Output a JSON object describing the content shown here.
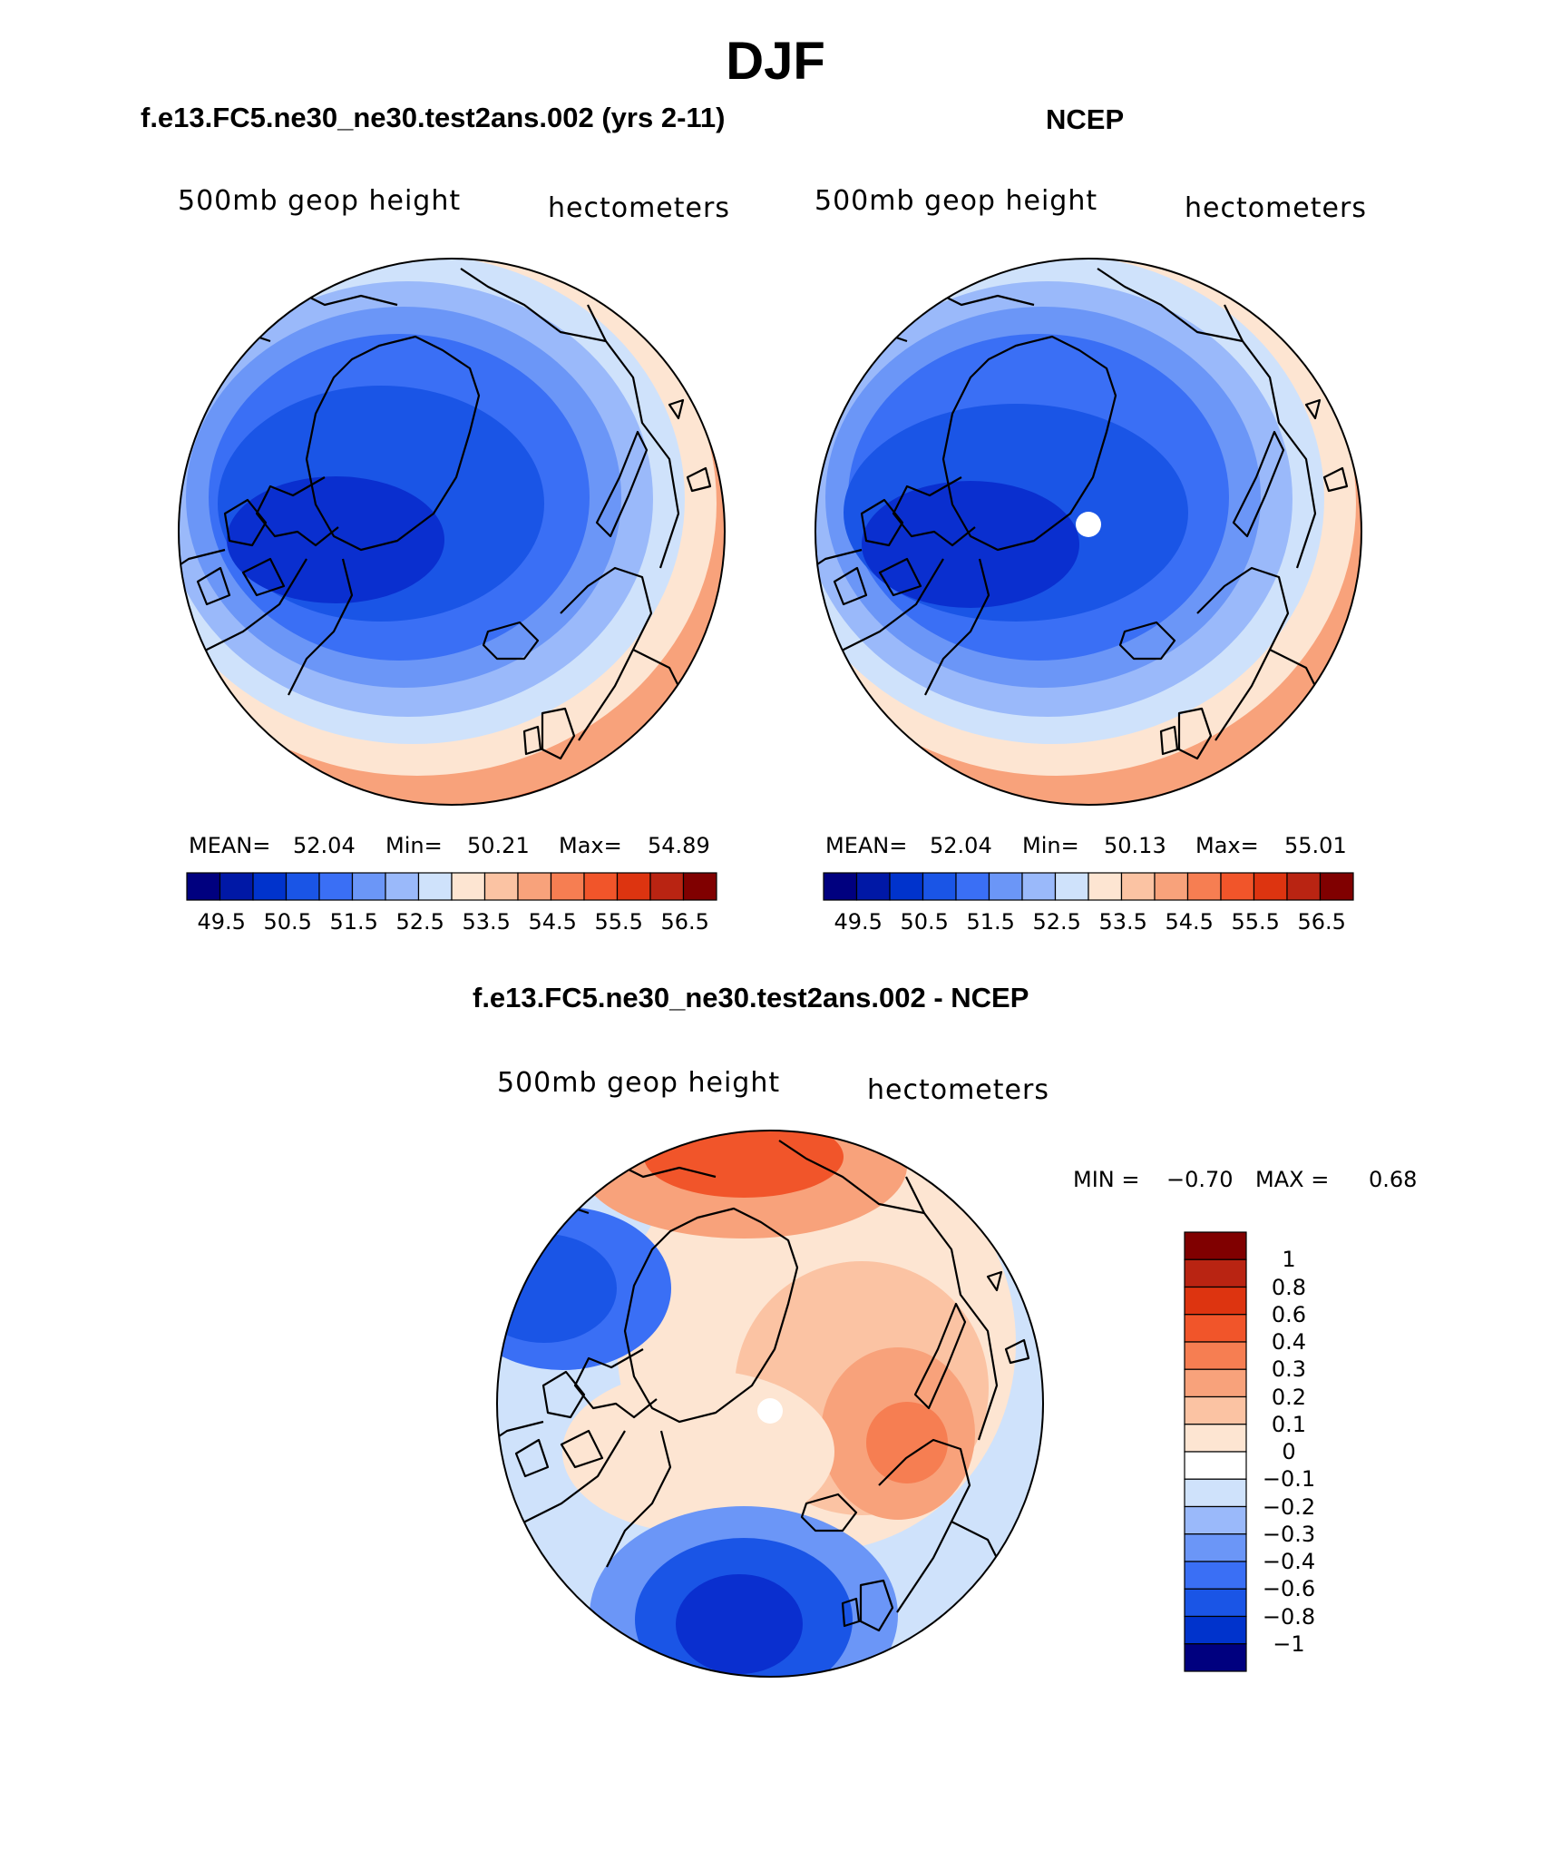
{
  "title": "DJF",
  "panels": [
    {
      "title": "f.e13.FC5.ne30_ne30.test2ans.002 (yrs 2-11)",
      "variable_label": "500mb geop height",
      "units_label": "hectometers",
      "stats": {
        "mean_label": "MEAN=",
        "mean": "52.04",
        "min_label": "Min=",
        "min": "50.21",
        "max_label": "Max=",
        "max": "54.89"
      }
    },
    {
      "title": "NCEP",
      "variable_label": "500mb geop height",
      "units_label": "hectometers",
      "stats": {
        "mean_label": "MEAN=",
        "mean": "52.04",
        "min_label": "Min=",
        "min": "50.13",
        "max_label": "Max=",
        "max": "55.01"
      }
    }
  ],
  "colorbar_horizontal": {
    "colors": [
      "#00007f",
      "#0018a6",
      "#0033cc",
      "#1a55e6",
      "#3a6ff5",
      "#6b96f7",
      "#9ab9fa",
      "#cfe2fb",
      "#fde5d2",
      "#fbc3a3",
      "#f8a27b",
      "#f67e52",
      "#f1552a",
      "#dd3410",
      "#b92412",
      "#800000"
    ],
    "tick_labels": [
      "49.5",
      "50.5",
      "51.5",
      "52.5",
      "53.5",
      "54.5",
      "55.5",
      "56.5"
    ]
  },
  "diff_panel": {
    "title": "f.e13.FC5.ne30_ne30.test2ans.002 - NCEP",
    "variable_label": "500mb geop height",
    "units_label": "hectometers",
    "stats": {
      "min_label": "MIN =",
      "min": "−0.70",
      "max_label": "MAX =",
      "max": "0.68"
    }
  },
  "colorbar_vertical": {
    "colors": [
      "#800000",
      "#b92412",
      "#dd3410",
      "#f1552a",
      "#f67e52",
      "#f8a27b",
      "#fbc3a3",
      "#fde5d2",
      "#ffffff",
      "#cfe2fb",
      "#9ab9fa",
      "#6b96f7",
      "#3a6ff5",
      "#1a55e6",
      "#0033cc",
      "#00007f"
    ],
    "tick_labels": [
      "1",
      "0.8",
      "0.6",
      "0.4",
      "0.3",
      "0.2",
      "0.1",
      "0",
      "−0.1",
      "−0.2",
      "−0.3",
      "−0.4",
      "−0.6",
      "−0.8",
      "−1"
    ]
  },
  "palette": {
    "deep_blue": "#0a2fcf",
    "blue": "#2e5fe8",
    "mid_blue": "#5f8cf2",
    "light_blue": "#9ab9fa",
    "pale_blue": "#cfe2fb",
    "pale_orange": "#fde5d2",
    "light_orange": "#f8a27b",
    "orange": "#f1552a",
    "dark_red": "#b92412",
    "coast": "#000000"
  }
}
